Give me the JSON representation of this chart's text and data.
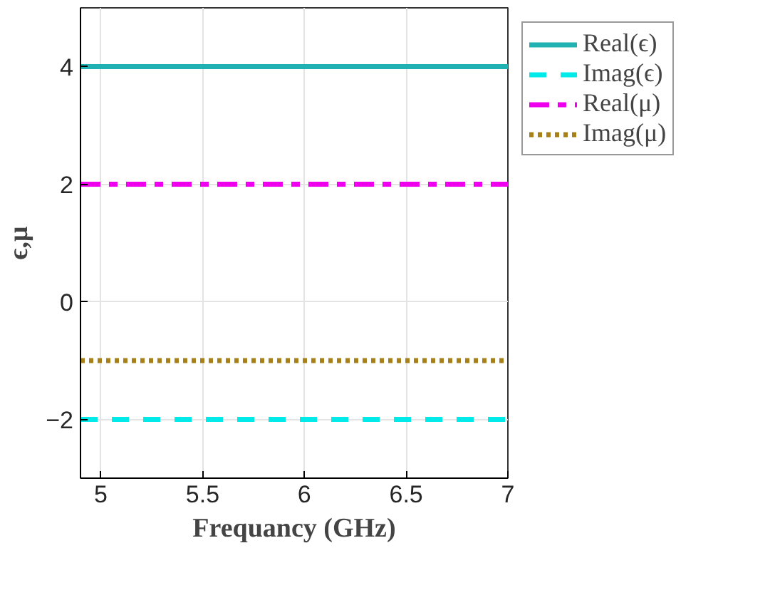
{
  "chart_data": {
    "type": "line",
    "xlabel": "Frequancy (GHz)",
    "ylabel": "ϵ,μ",
    "x": [
      4.9,
      7
    ],
    "series": [
      {
        "name": "Real(ϵ)",
        "color": "#20b2b2",
        "values": [
          4,
          4
        ],
        "line_style": "solid"
      },
      {
        "name": "Imag(ϵ)",
        "color": "#00eaea",
        "values": [
          -2,
          -2
        ],
        "line_style": "dashed"
      },
      {
        "name": "Real(μ)",
        "color": "#ee00ee",
        "values": [
          2,
          2
        ],
        "line_style": "dashdot"
      },
      {
        "name": "Imag(μ)",
        "color": "#a8801a",
        "values": [
          -1,
          -1
        ],
        "line_style": "dotted"
      }
    ],
    "xlim": [
      4.9,
      7
    ],
    "xticks": [
      5,
      5.5,
      6,
      6.5,
      7
    ],
    "ylim": [
      -3,
      5
    ],
    "yticks": [
      -2,
      0,
      2,
      4
    ],
    "grid": true,
    "legend": "top right"
  }
}
